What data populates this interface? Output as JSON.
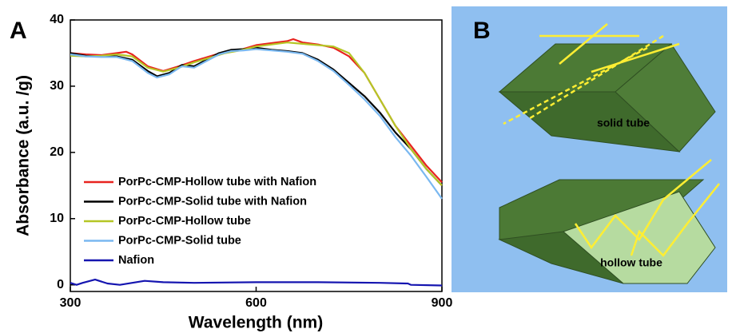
{
  "chart_data": {
    "type": "line",
    "panel_label": "A",
    "x_label": "Wavelength (nm)",
    "y_label": "Absorbance (a.u. /g)",
    "xlim": [
      300,
      900
    ],
    "xticks": [
      300,
      600,
      900
    ],
    "ylim": [
      -1,
      40
    ],
    "yticks": [
      0,
      10,
      20,
      30,
      40
    ],
    "grid": false,
    "legend": "center left",
    "series": [
      {
        "name": "PorPc-CMP-Hollow tube with Nafion",
        "color": "#e8231f",
        "x": [
          300,
          325,
          350,
          375,
          390,
          400,
          425,
          450,
          475,
          500,
          525,
          550,
          575,
          600,
          625,
          650,
          660,
          675,
          700,
          725,
          750,
          775,
          800,
          825,
          850,
          875,
          900
        ],
        "values": [
          35,
          34.8,
          34.7,
          35,
          35.2,
          34.8,
          33,
          32.3,
          33,
          33.8,
          34.5,
          35.2,
          35.5,
          36.2,
          36.5,
          36.8,
          37.1,
          36.6,
          36.3,
          35.8,
          34.5,
          32,
          28,
          24,
          21,
          18,
          15.5
        ]
      },
      {
        "name": "PorPc-CMP-Solid tube with Nafion",
        "color": "#000000",
        "x": [
          300,
          325,
          350,
          375,
          400,
          425,
          440,
          460,
          480,
          500,
          520,
          540,
          560,
          580,
          600,
          625,
          650,
          675,
          700,
          725,
          750,
          775,
          800,
          825,
          850,
          875,
          900
        ],
        "values": [
          35,
          34.6,
          34.5,
          34.5,
          34,
          32.3,
          31.5,
          32,
          33.2,
          33,
          34,
          35,
          35.5,
          35.6,
          35.8,
          35.5,
          35.3,
          35,
          34,
          32.5,
          30.5,
          28.5,
          26,
          23,
          20.5,
          17.5,
          15
        ]
      },
      {
        "name": "PorPc-CMP-Hollow tube",
        "color": "#b5c625",
        "x": [
          300,
          325,
          350,
          375,
          400,
          425,
          450,
          475,
          500,
          525,
          550,
          575,
          600,
          625,
          650,
          675,
          700,
          725,
          750,
          775,
          800,
          825,
          850,
          875,
          900
        ],
        "values": [
          34.6,
          34.5,
          34.6,
          34.8,
          34.5,
          32.8,
          32.2,
          32.8,
          33.6,
          34.3,
          35,
          35.4,
          36,
          36.3,
          36.6,
          36.4,
          36.2,
          36,
          35,
          32,
          28,
          24,
          20.5,
          17.5,
          15
        ]
      },
      {
        "name": "PorPc-CMP-Solid tube",
        "color": "#7ab8f0",
        "x": [
          300,
          325,
          350,
          375,
          400,
          425,
          440,
          460,
          480,
          500,
          520,
          540,
          560,
          580,
          600,
          625,
          650,
          675,
          700,
          725,
          750,
          775,
          800,
          825,
          850,
          875,
          900
        ],
        "values": [
          34.8,
          34.5,
          34.4,
          34.4,
          33.8,
          32,
          31.3,
          31.8,
          33,
          32.8,
          33.8,
          34.8,
          35.3,
          35.4,
          35.6,
          35.4,
          35.2,
          34.9,
          33.8,
          32.3,
          30.2,
          28,
          25.5,
          22.3,
          19.5,
          16.3,
          13
        ]
      },
      {
        "name": "Nafion",
        "color": "#1515b0",
        "x": [
          300,
          310,
          320,
          340,
          360,
          380,
          400,
          420,
          450,
          500,
          600,
          700,
          800,
          845,
          850,
          900
        ],
        "values": [
          0.3,
          0,
          0.3,
          0.8,
          0.2,
          0,
          0.3,
          0.6,
          0.4,
          0.3,
          0.4,
          0.4,
          0.3,
          0.2,
          0,
          -0.1
        ]
      }
    ]
  },
  "diagram": {
    "panel_label": "B",
    "labels": [
      "solid tube",
      "hollow tube"
    ]
  }
}
